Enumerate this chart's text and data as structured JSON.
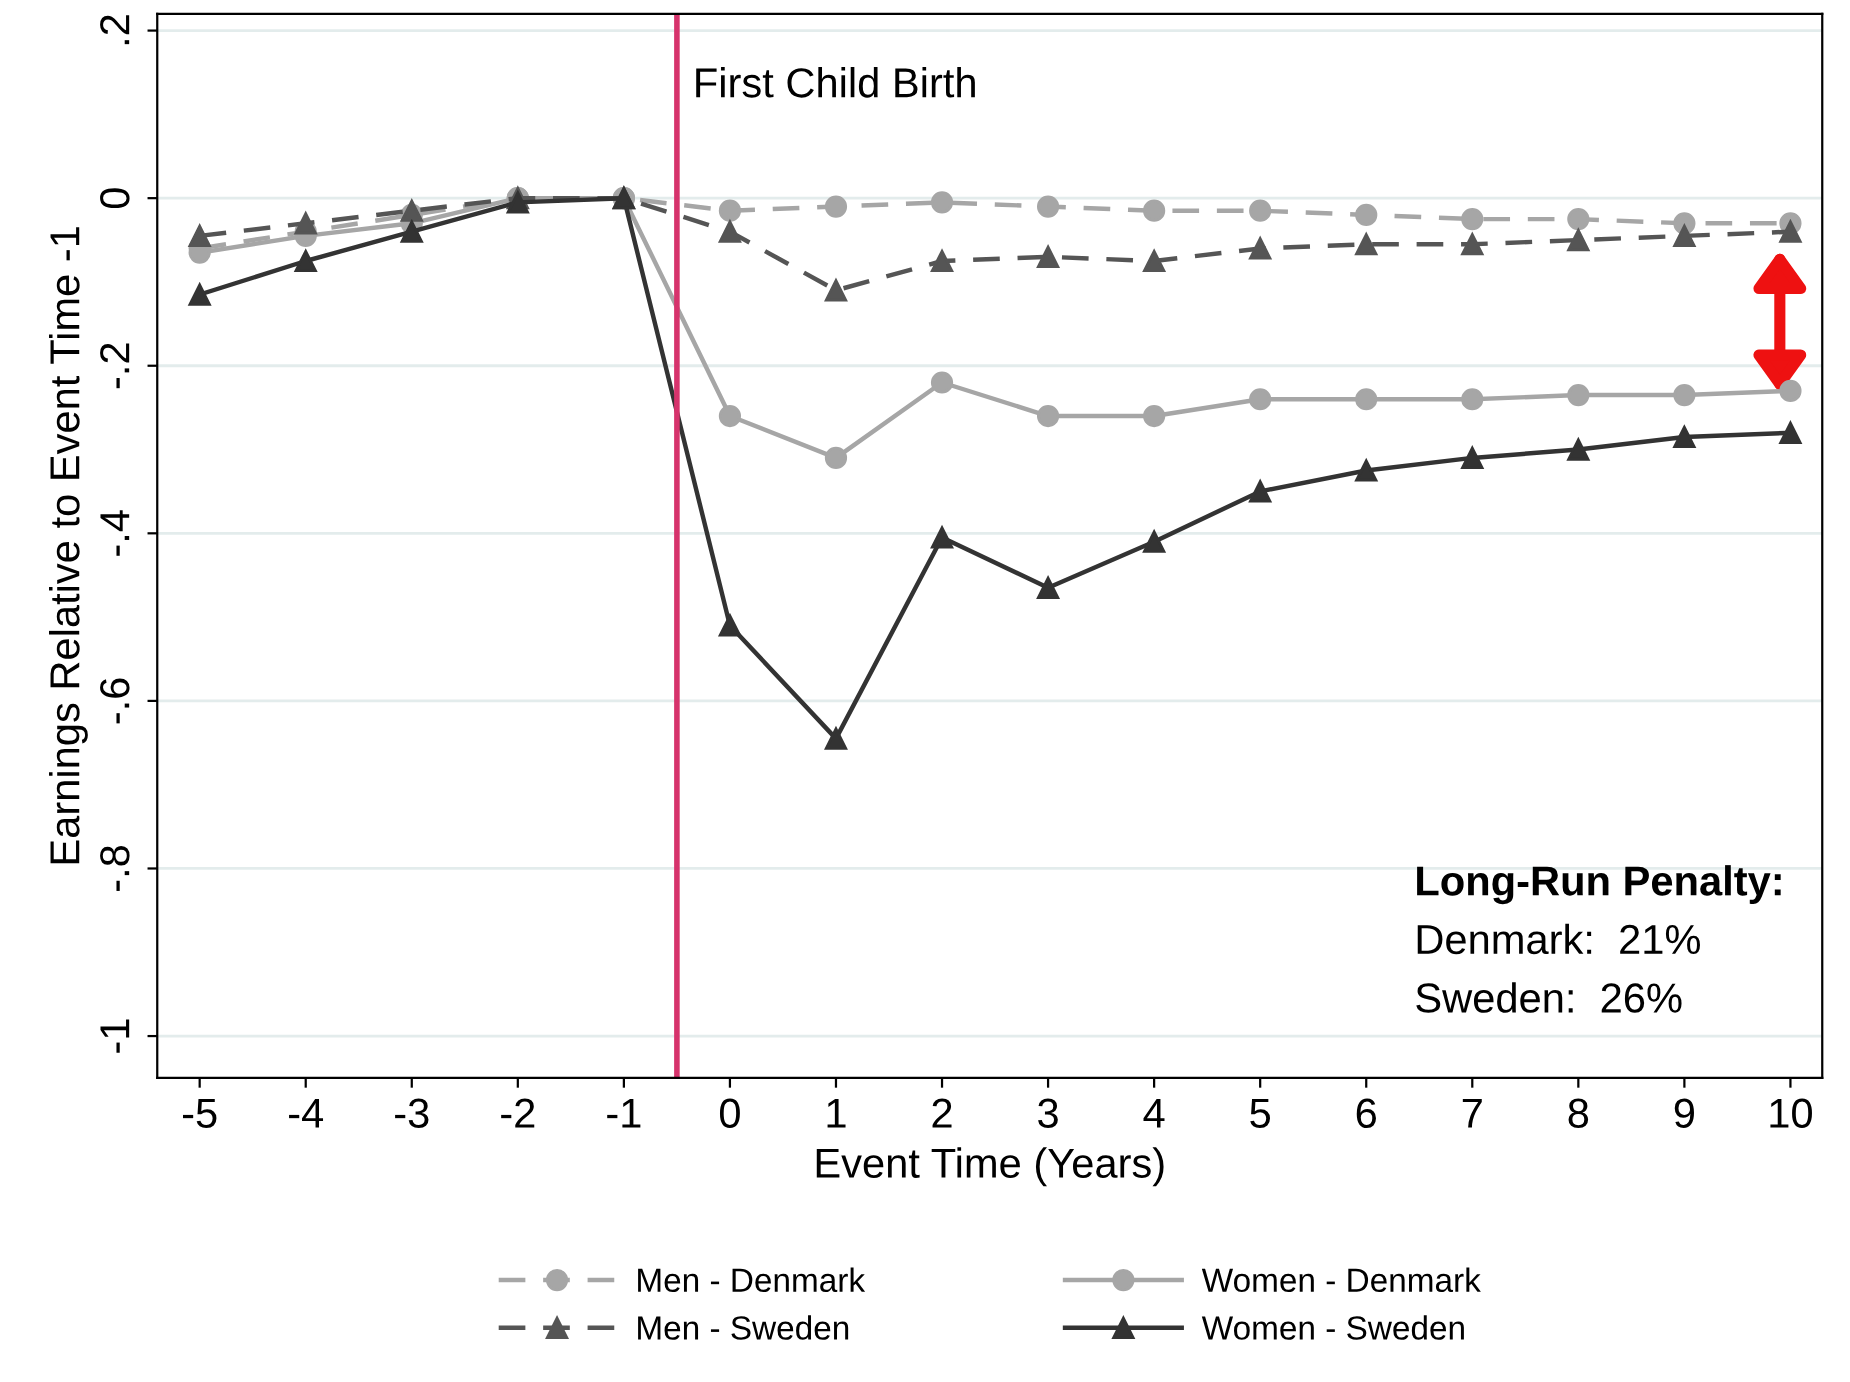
{
  "chart_data": {
    "type": "line",
    "xlabel": "Event Time (Years)",
    "ylabel": "Earnings Relative to Event Time -1",
    "x": [
      -5,
      -4,
      -3,
      -2,
      -1,
      0,
      1,
      2,
      3,
      4,
      5,
      6,
      7,
      8,
      9,
      10
    ],
    "series": [
      {
        "name": "Men - Denmark",
        "color": "#a6a6a6",
        "marker": "circle",
        "line_style": "dashed",
        "values": [
          -0.06,
          -0.04,
          -0.02,
          0,
          0,
          -0.015,
          -0.01,
          -0.005,
          -0.01,
          -0.015,
          -0.015,
          -0.02,
          -0.025,
          -0.025,
          -0.03,
          -0.03
        ]
      },
      {
        "name": "Women - Denmark",
        "color": "#a6a6a6",
        "marker": "circle",
        "line_style": "solid",
        "values": [
          -0.065,
          -0.045,
          -0.03,
          0,
          0,
          -0.26,
          -0.31,
          -0.22,
          -0.26,
          -0.26,
          -0.24,
          -0.24,
          -0.24,
          -0.235,
          -0.235,
          -0.23
        ]
      },
      {
        "name": "Men - Sweden",
        "color": "#555555",
        "marker": "triangle",
        "line_style": "dashed",
        "values": [
          -0.045,
          -0.03,
          -0.015,
          0,
          0,
          -0.04,
          -0.11,
          -0.075,
          -0.07,
          -0.075,
          -0.06,
          -0.055,
          -0.055,
          -0.05,
          -0.045,
          -0.04
        ]
      },
      {
        "name": "Women - Sweden",
        "color": "#333333",
        "marker": "triangle",
        "line_style": "solid",
        "values": [
          -0.115,
          -0.075,
          -0.04,
          -0.005,
          0,
          -0.51,
          -0.645,
          -0.405,
          -0.465,
          -0.41,
          -0.35,
          -0.325,
          -0.31,
          -0.3,
          -0.285,
          -0.28
        ]
      }
    ],
    "xlim": [
      -5.4,
      10.3
    ],
    "xticks": [
      -5,
      -4,
      -3,
      -2,
      -1,
      0,
      1,
      2,
      3,
      4,
      5,
      6,
      7,
      8,
      9,
      10
    ],
    "ylim": [
      -1.05,
      0.22
    ],
    "yticks": [
      {
        "value": 0.2,
        "label": ".2"
      },
      0,
      {
        "value": -0.2,
        "label": "-.2"
      },
      {
        "value": -0.4,
        "label": "-.4"
      },
      {
        "value": -0.6,
        "label": "-.6"
      },
      {
        "value": -0.8,
        "label": "-.8"
      },
      -1
    ],
    "ref_lines": [
      {
        "axis": "x",
        "value": -0.5,
        "label": "First Child Birth",
        "color": "#d6336c"
      }
    ],
    "annotations": [
      "Long-Run Penalty:",
      "Denmark:  21%",
      "Sweden:  26%"
    ],
    "grid": "y",
    "legend": "bottom"
  }
}
